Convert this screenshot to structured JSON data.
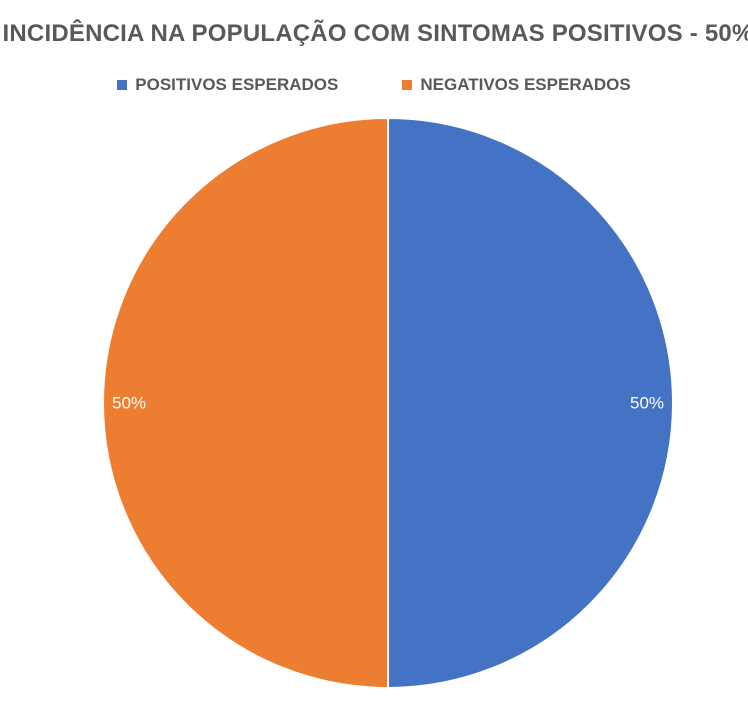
{
  "chart_data": {
    "type": "pie",
    "title": "INCIDÊNCIA NA POPULAÇÃO COM SINTOMAS POSITIVOS - 50%",
    "legend_position": "top",
    "slices": [
      {
        "name": "POSITIVOS ESPERADOS",
        "value": 50,
        "label": "50%",
        "color": "#4472C4"
      },
      {
        "name": "NEGATIVOS ESPERADOS",
        "value": 50,
        "label": "50%",
        "color": "#ED7D31"
      }
    ]
  }
}
